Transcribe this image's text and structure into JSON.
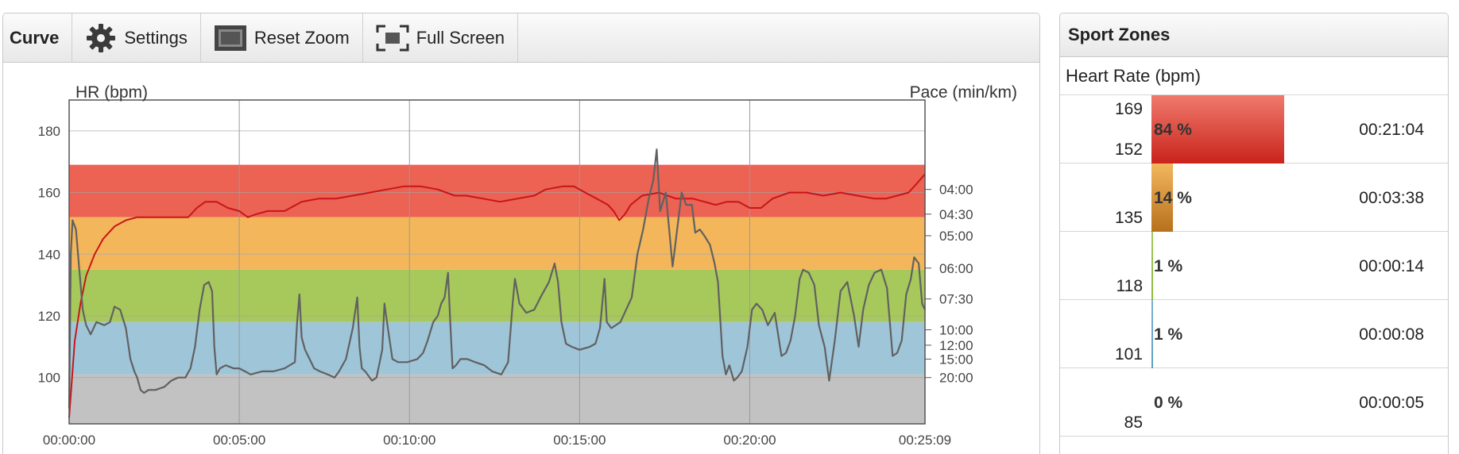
{
  "toolbar": {
    "title": "Curve",
    "settings_label": "Settings",
    "reset_zoom_label": "Reset Zoom",
    "full_screen_label": "Full Screen"
  },
  "chart_data": {
    "type": "line",
    "left_axis_label": "HR (bpm)",
    "right_axis_label": "Pace (min/km)",
    "y_left_range": [
      85,
      190
    ],
    "y_left_ticks": [
      100,
      120,
      140,
      160,
      180
    ],
    "x_range_seconds": [
      0,
      1509
    ],
    "x_ticks": [
      {
        "t": 0,
        "label": "00:00:00"
      },
      {
        "t": 300,
        "label": "00:05:00"
      },
      {
        "t": 600,
        "label": "00:10:00"
      },
      {
        "t": 900,
        "label": "00:15:00"
      },
      {
        "t": 1200,
        "label": "00:20:00"
      },
      {
        "t": 1509,
        "label": "00:25:09"
      }
    ],
    "right_ticks": [
      {
        "label": "04:00",
        "hr": 161
      },
      {
        "label": "04:30",
        "hr": 153
      },
      {
        "label": "05:00",
        "hr": 146
      },
      {
        "label": "06:00",
        "hr": 135.5
      },
      {
        "label": "07:30",
        "hr": 125.5
      },
      {
        "label": "10:00",
        "hr": 115.5
      },
      {
        "label": "12:00",
        "hr": 110.5
      },
      {
        "label": "15:00",
        "hr": 106
      },
      {
        "label": "20:00",
        "hr": 100
      }
    ],
    "zones": [
      {
        "from": 152,
        "to": 169,
        "color": "#ec6253"
      },
      {
        "from": 135,
        "to": 152,
        "color": "#f4b65a"
      },
      {
        "from": 118,
        "to": 135,
        "color": "#a7c95b"
      },
      {
        "from": 101,
        "to": 118,
        "color": "#9fc5d9"
      },
      {
        "from": 85,
        "to": 101,
        "color": "#c2c2c2"
      }
    ],
    "series": [
      {
        "color": "#c8151b",
        "points": [
          [
            0,
            87
          ],
          [
            10,
            112
          ],
          [
            20,
            124
          ],
          [
            30,
            133
          ],
          [
            45,
            140
          ],
          [
            60,
            145
          ],
          [
            80,
            149
          ],
          [
            100,
            151
          ],
          [
            120,
            152
          ],
          [
            150,
            152
          ],
          [
            180,
            152
          ],
          [
            210,
            152
          ],
          [
            225,
            155
          ],
          [
            240,
            157
          ],
          [
            260,
            157
          ],
          [
            280,
            155
          ],
          [
            300,
            154
          ],
          [
            315,
            152
          ],
          [
            330,
            153
          ],
          [
            350,
            154
          ],
          [
            380,
            154
          ],
          [
            410,
            157
          ],
          [
            440,
            158
          ],
          [
            470,
            158
          ],
          [
            500,
            159
          ],
          [
            530,
            160
          ],
          [
            560,
            161
          ],
          [
            590,
            162
          ],
          [
            620,
            162
          ],
          [
            650,
            161
          ],
          [
            680,
            159
          ],
          [
            700,
            159
          ],
          [
            730,
            158
          ],
          [
            760,
            157
          ],
          [
            790,
            158
          ],
          [
            820,
            159
          ],
          [
            840,
            161
          ],
          [
            870,
            162
          ],
          [
            890,
            162
          ],
          [
            910,
            160
          ],
          [
            930,
            158
          ],
          [
            950,
            156
          ],
          [
            960,
            154
          ],
          [
            970,
            151
          ],
          [
            980,
            153
          ],
          [
            990,
            156
          ],
          [
            1010,
            159
          ],
          [
            1040,
            160
          ],
          [
            1070,
            158
          ],
          [
            1100,
            158
          ],
          [
            1120,
            157
          ],
          [
            1140,
            156
          ],
          [
            1160,
            157
          ],
          [
            1180,
            157
          ],
          [
            1200,
            155
          ],
          [
            1220,
            155
          ],
          [
            1240,
            158
          ],
          [
            1270,
            160
          ],
          [
            1300,
            160
          ],
          [
            1330,
            159
          ],
          [
            1360,
            160
          ],
          [
            1390,
            159
          ],
          [
            1420,
            158
          ],
          [
            1440,
            158
          ],
          [
            1460,
            159
          ],
          [
            1480,
            160
          ],
          [
            1495,
            163
          ],
          [
            1509,
            166
          ]
        ]
      },
      {
        "color": "#616161",
        "points": [
          [
            0,
            90
          ],
          [
            3,
            140
          ],
          [
            6,
            151
          ],
          [
            12,
            148
          ],
          [
            18,
            135
          ],
          [
            24,
            122
          ],
          [
            30,
            117
          ],
          [
            38,
            114
          ],
          [
            48,
            118
          ],
          [
            62,
            117
          ],
          [
            72,
            118
          ],
          [
            80,
            123
          ],
          [
            90,
            122
          ],
          [
            100,
            116
          ],
          [
            108,
            106
          ],
          [
            115,
            102
          ],
          [
            120,
            100
          ],
          [
            126,
            96
          ],
          [
            132,
            95
          ],
          [
            140,
            96
          ],
          [
            152,
            96
          ],
          [
            168,
            97
          ],
          [
            180,
            99
          ],
          [
            192,
            100
          ],
          [
            205,
            100
          ],
          [
            214,
            103
          ],
          [
            222,
            110
          ],
          [
            230,
            122
          ],
          [
            238,
            130
          ],
          [
            246,
            131
          ],
          [
            252,
            128
          ],
          [
            256,
            110
          ],
          [
            260,
            101
          ],
          [
            266,
            103
          ],
          [
            276,
            104
          ],
          [
            290,
            103
          ],
          [
            300,
            103
          ],
          [
            310,
            102
          ],
          [
            320,
            101
          ],
          [
            340,
            102
          ],
          [
            360,
            102
          ],
          [
            380,
            103
          ],
          [
            398,
            105
          ],
          [
            402,
            118
          ],
          [
            406,
            127
          ],
          [
            410,
            113
          ],
          [
            416,
            109
          ],
          [
            424,
            106
          ],
          [
            432,
            103
          ],
          [
            442,
            102
          ],
          [
            456,
            101
          ],
          [
            468,
            100
          ],
          [
            476,
            102
          ],
          [
            488,
            106
          ],
          [
            500,
            116
          ],
          [
            508,
            126
          ],
          [
            512,
            110
          ],
          [
            516,
            103
          ],
          [
            522,
            102
          ],
          [
            534,
            99
          ],
          [
            542,
            100
          ],
          [
            552,
            109
          ],
          [
            556,
            124
          ],
          [
            562,
            116
          ],
          [
            570,
            106
          ],
          [
            580,
            105
          ],
          [
            596,
            105
          ],
          [
            614,
            106
          ],
          [
            624,
            108
          ],
          [
            632,
            112
          ],
          [
            642,
            118
          ],
          [
            650,
            120
          ],
          [
            656,
            124
          ],
          [
            662,
            126
          ],
          [
            668,
            134
          ],
          [
            672,
            118
          ],
          [
            676,
            103
          ],
          [
            682,
            104
          ],
          [
            690,
            106
          ],
          [
            702,
            106
          ],
          [
            716,
            105
          ],
          [
            732,
            104
          ],
          [
            746,
            102
          ],
          [
            762,
            101
          ],
          [
            774,
            105
          ],
          [
            782,
            124
          ],
          [
            786,
            132
          ],
          [
            794,
            124
          ],
          [
            806,
            121
          ],
          [
            820,
            122
          ],
          [
            834,
            127
          ],
          [
            846,
            131
          ],
          [
            856,
            137
          ],
          [
            862,
            131
          ],
          [
            868,
            118
          ],
          [
            876,
            111
          ],
          [
            886,
            110
          ],
          [
            900,
            109
          ],
          [
            918,
            110
          ],
          [
            928,
            111
          ],
          [
            936,
            116
          ],
          [
            940,
            124
          ],
          [
            944,
            132
          ],
          [
            948,
            118
          ],
          [
            956,
            116
          ],
          [
            972,
            118
          ],
          [
            982,
            122
          ],
          [
            992,
            126
          ],
          [
            1002,
            140
          ],
          [
            1012,
            148
          ],
          [
            1022,
            158
          ],
          [
            1030,
            164
          ],
          [
            1036,
            174
          ],
          [
            1042,
            154
          ],
          [
            1052,
            160
          ],
          [
            1064,
            136
          ],
          [
            1070,
            145
          ],
          [
            1080,
            160
          ],
          [
            1088,
            156
          ],
          [
            1098,
            156
          ],
          [
            1104,
            147
          ],
          [
            1112,
            148
          ],
          [
            1120,
            146
          ],
          [
            1130,
            143
          ],
          [
            1138,
            137
          ],
          [
            1144,
            131
          ],
          [
            1152,
            107
          ],
          [
            1158,
            101
          ],
          [
            1164,
            104
          ],
          [
            1172,
            99
          ],
          [
            1178,
            100
          ],
          [
            1186,
            102
          ],
          [
            1196,
            110
          ],
          [
            1204,
            122
          ],
          [
            1212,
            124
          ],
          [
            1222,
            122
          ],
          [
            1232,
            117
          ],
          [
            1244,
            121
          ],
          [
            1256,
            107
          ],
          [
            1264,
            108
          ],
          [
            1272,
            112
          ],
          [
            1280,
            120
          ],
          [
            1288,
            132
          ],
          [
            1294,
            135
          ],
          [
            1304,
            134
          ],
          [
            1314,
            130
          ],
          [
            1322,
            117
          ],
          [
            1332,
            110
          ],
          [
            1340,
            99
          ],
          [
            1350,
            112
          ],
          [
            1360,
            128
          ],
          [
            1372,
            131
          ],
          [
            1384,
            120
          ],
          [
            1392,
            110
          ],
          [
            1400,
            122
          ],
          [
            1410,
            130
          ],
          [
            1420,
            134
          ],
          [
            1432,
            135
          ],
          [
            1442,
            129
          ],
          [
            1452,
            107
          ],
          [
            1460,
            108
          ],
          [
            1468,
            112
          ],
          [
            1476,
            127
          ],
          [
            1484,
            132
          ],
          [
            1490,
            139
          ],
          [
            1498,
            137
          ],
          [
            1504,
            124
          ],
          [
            1509,
            122
          ]
        ]
      }
    ]
  },
  "sport_zones": {
    "title": "Sport Zones",
    "subtitle": "Heart Rate (bpm)",
    "rows": [
      {
        "upper": "169",
        "lower": "152",
        "pct": "84 %",
        "pct_value": 84,
        "time": "00:21:04",
        "color": "#d8362b"
      },
      {
        "upper": "",
        "lower": "135",
        "pct": "14 %",
        "pct_value": 14,
        "time": "00:03:38",
        "color": "#c97f22"
      },
      {
        "upper": "",
        "lower": "118",
        "pct": "1 %",
        "pct_value": 1,
        "time": "00:00:14",
        "color": "#8db93a"
      },
      {
        "upper": "",
        "lower": "101",
        "pct": "1 %",
        "pct_value": 1,
        "time": "00:00:08",
        "color": "#5d9ec2"
      },
      {
        "upper": "",
        "lower": "85",
        "pct": "0 %",
        "pct_value": 0,
        "time": "00:00:05",
        "color": "#999999"
      }
    ]
  }
}
